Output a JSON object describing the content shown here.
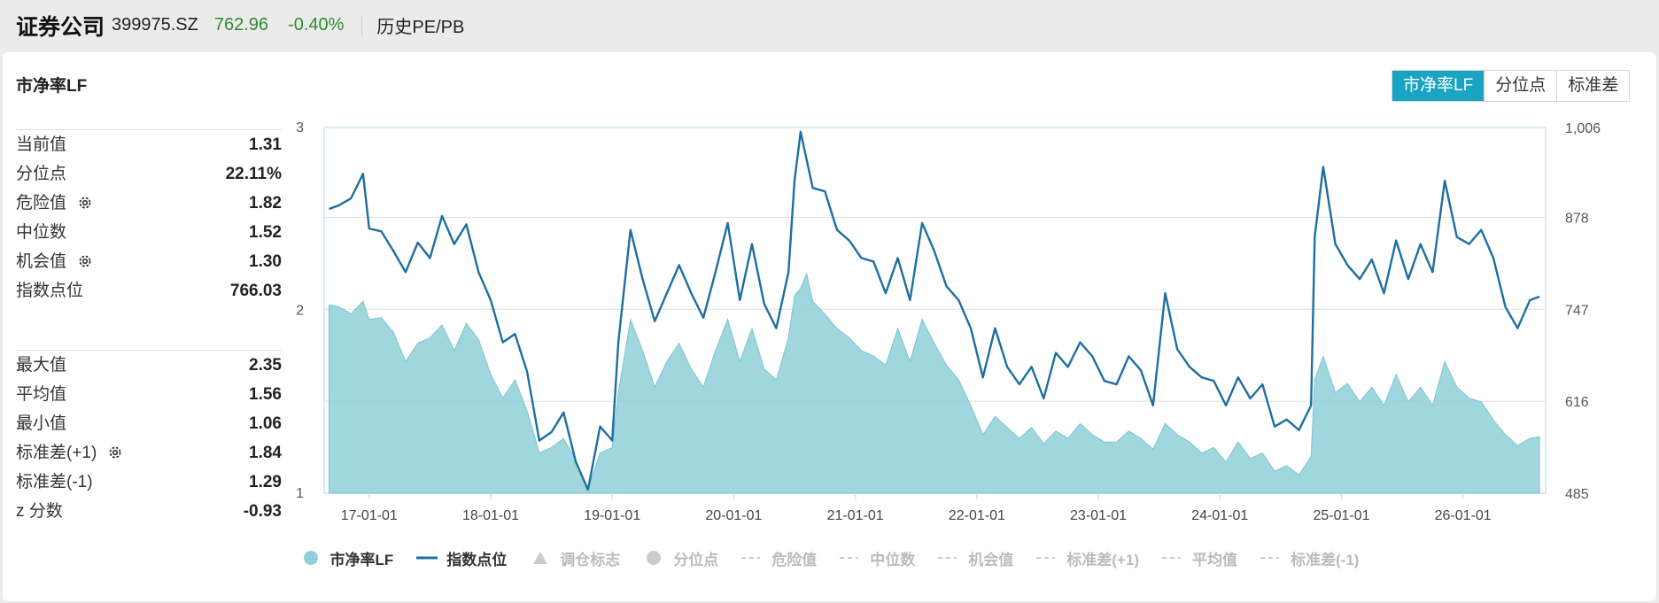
{
  "header": {
    "name": "证券公司",
    "code": "399975.SZ",
    "price": "762.96",
    "change": "-0.40%",
    "tag": "历史PE/PB"
  },
  "panel": {
    "title": "市净率LF",
    "tabs": [
      {
        "label": "市净率LF",
        "active": true
      },
      {
        "label": "分位点",
        "active": false
      },
      {
        "label": "标准差",
        "active": false
      }
    ]
  },
  "stats_top": [
    {
      "label": "当前值",
      "value": "1.31",
      "gear": false
    },
    {
      "label": "分位点",
      "value": "22.11%",
      "gear": false
    },
    {
      "label": "危险值",
      "value": "1.82",
      "gear": true
    },
    {
      "label": "中位数",
      "value": "1.52",
      "gear": false
    },
    {
      "label": "机会值",
      "value": "1.30",
      "gear": true
    },
    {
      "label": "指数点位",
      "value": "766.03",
      "gear": false
    }
  ],
  "stats_bottom": [
    {
      "label": "最大值",
      "value": "2.35",
      "gear": false
    },
    {
      "label": "平均值",
      "value": "1.56",
      "gear": false
    },
    {
      "label": "最小值",
      "value": "1.06",
      "gear": false
    },
    {
      "label": "标准差(+1)",
      "value": "1.84",
      "gear": true
    },
    {
      "label": "标准差(-1)",
      "value": "1.29",
      "gear": false
    },
    {
      "label": "z 分数",
      "value": "-0.93",
      "gear": false
    }
  ],
  "chart_data": {
    "type": "area",
    "categories": [
      "17-01-01",
      "18-01-01",
      "19-01-01",
      "20-01-01",
      "21-01-01",
      "22-01-01",
      "23-01-01",
      "24-01-01",
      "25-01-01",
      "26-01-01"
    ],
    "y_left": {
      "ticks": [
        "1",
        "2",
        "3"
      ],
      "range": [
        1,
        3
      ]
    },
    "y_right": {
      "ticks": [
        "485",
        "616",
        "747",
        "878",
        "1,006"
      ],
      "range": [
        485,
        1006
      ]
    },
    "grid": true,
    "series": [
      {
        "name": "市净率LF",
        "kind": "area",
        "axis": "left",
        "color": "#8fd0d8",
        "x": [
          2016.67,
          2016.75,
          2016.85,
          2016.95,
          2017.0,
          2017.1,
          2017.2,
          2017.3,
          2017.4,
          2017.5,
          2017.6,
          2017.7,
          2017.8,
          2017.9,
          2018.0,
          2018.1,
          2018.2,
          2018.3,
          2018.4,
          2018.5,
          2018.6,
          2018.7,
          2018.8,
          2018.9,
          2019.0,
          2019.05,
          2019.15,
          2019.25,
          2019.35,
          2019.45,
          2019.55,
          2019.65,
          2019.75,
          2019.85,
          2019.95,
          2020.05,
          2020.15,
          2020.25,
          2020.35,
          2020.45,
          2020.5,
          2020.55,
          2020.6,
          2020.65,
          2020.75,
          2020.85,
          2020.95,
          2021.05,
          2021.15,
          2021.25,
          2021.35,
          2021.45,
          2021.55,
          2021.65,
          2021.75,
          2021.85,
          2021.95,
          2022.05,
          2022.15,
          2022.25,
          2022.35,
          2022.45,
          2022.55,
          2022.65,
          2022.75,
          2022.85,
          2022.95,
          2023.05,
          2023.15,
          2023.25,
          2023.35,
          2023.45,
          2023.55,
          2023.65,
          2023.75,
          2023.85,
          2023.95,
          2024.05,
          2024.15,
          2024.25,
          2024.35,
          2024.45,
          2024.55,
          2024.65,
          2024.75,
          2024.78,
          2024.85,
          2024.95,
          2025.05,
          2025.15,
          2025.25,
          2025.35,
          2025.45,
          2025.55,
          2025.65,
          2025.75,
          2025.85,
          2025.95,
          2026.05,
          2026.15,
          2026.25,
          2026.35,
          2026.45,
          2026.55,
          2026.63
        ],
        "y": [
          2.03,
          2.02,
          1.98,
          2.05,
          1.95,
          1.96,
          1.88,
          1.72,
          1.82,
          1.85,
          1.92,
          1.78,
          1.93,
          1.84,
          1.65,
          1.52,
          1.62,
          1.45,
          1.22,
          1.25,
          1.3,
          1.18,
          1.02,
          1.22,
          1.25,
          1.55,
          1.95,
          1.78,
          1.58,
          1.72,
          1.82,
          1.68,
          1.58,
          1.78,
          1.95,
          1.72,
          1.9,
          1.68,
          1.62,
          1.85,
          2.08,
          2.12,
          2.2,
          2.05,
          1.98,
          1.9,
          1.85,
          1.78,
          1.75,
          1.7,
          1.9,
          1.72,
          1.95,
          1.82,
          1.7,
          1.62,
          1.48,
          1.32,
          1.42,
          1.36,
          1.3,
          1.36,
          1.27,
          1.34,
          1.3,
          1.38,
          1.32,
          1.28,
          1.28,
          1.34,
          1.3,
          1.24,
          1.38,
          1.32,
          1.28,
          1.22,
          1.25,
          1.17,
          1.28,
          1.19,
          1.22,
          1.12,
          1.15,
          1.1,
          1.2,
          1.62,
          1.75,
          1.55,
          1.6,
          1.5,
          1.58,
          1.48,
          1.65,
          1.5,
          1.58,
          1.48,
          1.72,
          1.58,
          1.52,
          1.5,
          1.4,
          1.32,
          1.26,
          1.3,
          1.31
        ]
      },
      {
        "name": "指数点位",
        "kind": "line",
        "axis": "right",
        "color": "#1d6fa0",
        "x": [
          2016.67,
          2016.75,
          2016.85,
          2016.95,
          2017.0,
          2017.1,
          2017.2,
          2017.3,
          2017.4,
          2017.5,
          2017.6,
          2017.7,
          2017.8,
          2017.9,
          2018.0,
          2018.1,
          2018.2,
          2018.3,
          2018.4,
          2018.5,
          2018.6,
          2018.7,
          2018.8,
          2018.9,
          2019.0,
          2019.05,
          2019.15,
          2019.25,
          2019.35,
          2019.45,
          2019.55,
          2019.65,
          2019.75,
          2019.85,
          2019.95,
          2020.05,
          2020.15,
          2020.25,
          2020.35,
          2020.45,
          2020.5,
          2020.55,
          2020.6,
          2020.65,
          2020.75,
          2020.85,
          2020.95,
          2021.05,
          2021.15,
          2021.25,
          2021.35,
          2021.45,
          2021.55,
          2021.65,
          2021.75,
          2021.85,
          2021.95,
          2022.05,
          2022.15,
          2022.25,
          2022.35,
          2022.45,
          2022.55,
          2022.65,
          2022.75,
          2022.85,
          2022.95,
          2023.05,
          2023.15,
          2023.25,
          2023.35,
          2023.45,
          2023.55,
          2023.65,
          2023.75,
          2023.85,
          2023.95,
          2024.05,
          2024.15,
          2024.25,
          2024.35,
          2024.45,
          2024.55,
          2024.65,
          2024.75,
          2024.78,
          2024.85,
          2024.95,
          2025.05,
          2025.15,
          2025.25,
          2025.35,
          2025.45,
          2025.55,
          2025.65,
          2025.75,
          2025.85,
          2025.95,
          2026.05,
          2026.15,
          2026.25,
          2026.35,
          2026.45,
          2026.55,
          2026.63
        ],
        "y": [
          890,
          895,
          905,
          940,
          862,
          858,
          830,
          800,
          842,
          820,
          880,
          840,
          868,
          800,
          760,
          700,
          712,
          658,
          560,
          572,
          600,
          530,
          490,
          580,
          560,
          700,
          860,
          790,
          730,
          770,
          810,
          770,
          735,
          800,
          870,
          760,
          840,
          755,
          720,
          800,
          930,
          1000,
          960,
          920,
          915,
          860,
          845,
          820,
          815,
          770,
          820,
          760,
          870,
          830,
          780,
          760,
          720,
          650,
          720,
          665,
          640,
          665,
          620,
          685,
          665,
          700,
          680,
          645,
          640,
          680,
          660,
          610,
          770,
          690,
          665,
          650,
          645,
          610,
          650,
          620,
          640,
          580,
          590,
          575,
          610,
          850,
          950,
          840,
          810,
          790,
          818,
          770,
          845,
          790,
          840,
          800,
          930,
          850,
          840,
          860,
          820,
          750,
          720,
          760,
          765
        ]
      }
    ]
  },
  "legend": [
    {
      "label": "市净率LF",
      "symbol": "circle",
      "color": "#8fd0d8",
      "active": true
    },
    {
      "label": "指数点位",
      "symbol": "line",
      "color": "#1d6fa0",
      "active": true
    },
    {
      "label": "调仓标志",
      "symbol": "triangle",
      "color": "#cccccc",
      "active": false
    },
    {
      "label": "分位点",
      "symbol": "circle",
      "color": "#cccccc",
      "active": false
    },
    {
      "label": "危险值",
      "symbol": "dash",
      "color": "#cccccc",
      "active": false
    },
    {
      "label": "中位数",
      "symbol": "dash",
      "color": "#cccccc",
      "active": false
    },
    {
      "label": "机会值",
      "symbol": "dash",
      "color": "#cccccc",
      "active": false
    },
    {
      "label": "标准差(+1)",
      "symbol": "dash",
      "color": "#cccccc",
      "active": false
    },
    {
      "label": "平均值",
      "symbol": "dash",
      "color": "#cccccc",
      "active": false
    },
    {
      "label": "标准差(-1)",
      "symbol": "dash",
      "color": "#cccccc",
      "active": false
    }
  ]
}
